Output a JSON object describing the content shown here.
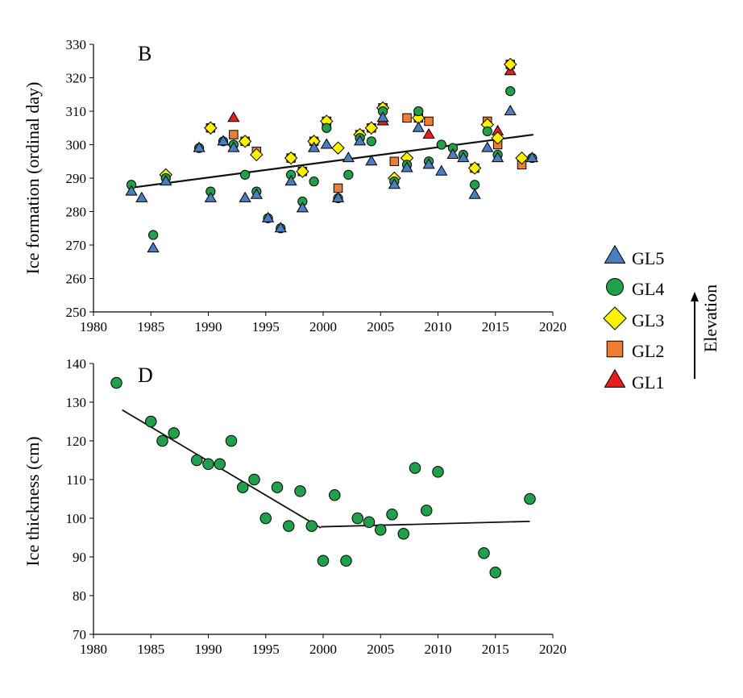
{
  "colors": {
    "GL5": "#4A7EC1",
    "GL4": "#1FA04A",
    "GL3": "#FFF200",
    "GL2": "#ED7D31",
    "GL1": "#E61E1E"
  },
  "legend": {
    "side_label": "Elevation",
    "items": [
      {
        "name": "GL5",
        "shape": "triangle",
        "color": "#4A7EC1"
      },
      {
        "name": "GL4",
        "shape": "circle",
        "color": "#1FA04A"
      },
      {
        "name": "GL3",
        "shape": "diamond",
        "color": "#FFF200"
      },
      {
        "name": "GL2",
        "shape": "square",
        "color": "#ED7D31"
      },
      {
        "name": "GL1",
        "shape": "triangle",
        "color": "#E61E1E"
      }
    ]
  },
  "chart_data": [
    {
      "type": "scatter",
      "panel_label": "B",
      "xlabel": "",
      "ylabel": "Ice formation (ordinal day)",
      "xlim": [
        1980,
        2020
      ],
      "ylim": [
        250,
        330
      ],
      "xticks": [
        1980,
        1985,
        1990,
        1995,
        2000,
        2005,
        2010,
        2015,
        2020
      ],
      "yticks": [
        250,
        260,
        270,
        280,
        290,
        300,
        310,
        320,
        330
      ],
      "grid": false,
      "legend_position": "right",
      "series": [
        {
          "name": "GL1",
          "shape": "triangle",
          "color": "#E61E1E",
          "points": [
            [
              1992.2,
              308
            ],
            [
              2005.2,
              307
            ],
            [
              2009.2,
              303
            ],
            [
              2015.2,
              304
            ],
            [
              2016.3,
              322
            ]
          ]
        },
        {
          "name": "GL2",
          "shape": "square",
          "color": "#ED7D31",
          "points": [
            [
              1990.2,
              305
            ],
            [
              1992.2,
              303
            ],
            [
              1993.2,
              301
            ],
            [
              1994.2,
              298
            ],
            [
              1997.2,
              296
            ],
            [
              1998.2,
              292
            ],
            [
              1999.2,
              301
            ],
            [
              2000.3,
              307
            ],
            [
              2001.3,
              287
            ],
            [
              2003.2,
              303
            ],
            [
              2004.2,
              305
            ],
            [
              2005.2,
              311
            ],
            [
              2006.2,
              295
            ],
            [
              2007.3,
              308
            ],
            [
              2008.3,
              308
            ],
            [
              2009.2,
              307
            ],
            [
              2013.2,
              293
            ],
            [
              2014.3,
              307
            ],
            [
              2015.2,
              300
            ],
            [
              2016.3,
              324
            ],
            [
              2017.3,
              294
            ]
          ]
        },
        {
          "name": "GL3",
          "shape": "diamond",
          "color": "#FFF200",
          "points": [
            [
              1986.3,
              291
            ],
            [
              1990.2,
              305
            ],
            [
              1993.2,
              301
            ],
            [
              1994.2,
              297
            ],
            [
              1997.2,
              296
            ],
            [
              1998.2,
              292
            ],
            [
              1999.2,
              301
            ],
            [
              2000.3,
              307
            ],
            [
              2001.3,
              299
            ],
            [
              2003.2,
              303
            ],
            [
              2004.2,
              305
            ],
            [
              2005.2,
              311
            ],
            [
              2006.2,
              290
            ],
            [
              2007.3,
              296
            ],
            [
              2008.3,
              308
            ],
            [
              2013.2,
              293
            ],
            [
              2014.3,
              306
            ],
            [
              2015.2,
              302
            ],
            [
              2016.3,
              324
            ],
            [
              2017.3,
              296
            ]
          ]
        },
        {
          "name": "GL4",
          "shape": "circle",
          "color": "#1FA04A",
          "points": [
            [
              1983.3,
              288
            ],
            [
              1985.2,
              273
            ],
            [
              1986.3,
              290
            ],
            [
              1989.2,
              299
            ],
            [
              1990.2,
              286
            ],
            [
              1991.3,
              301
            ],
            [
              1992.2,
              300
            ],
            [
              1993.2,
              291
            ],
            [
              1994.2,
              286
            ],
            [
              1995.2,
              278
            ],
            [
              1996.3,
              275
            ],
            [
              1997.2,
              291
            ],
            [
              1998.2,
              283
            ],
            [
              1999.2,
              289
            ],
            [
              2000.3,
              305
            ],
            [
              2001.3,
              284
            ],
            [
              2002.2,
              291
            ],
            [
              2003.2,
              302
            ],
            [
              2004.2,
              301
            ],
            [
              2005.2,
              310
            ],
            [
              2006.2,
              289
            ],
            [
              2007.3,
              294
            ],
            [
              2008.3,
              310
            ],
            [
              2009.2,
              295
            ],
            [
              2010.3,
              300
            ],
            [
              2011.3,
              299
            ],
            [
              2012.2,
              297
            ],
            [
              2013.2,
              288
            ],
            [
              2014.3,
              304
            ],
            [
              2015.2,
              297
            ],
            [
              2016.3,
              316
            ],
            [
              2018.2,
              296
            ]
          ]
        },
        {
          "name": "GL5",
          "shape": "triangle",
          "color": "#4A7EC1",
          "points": [
            [
              1983.3,
              286
            ],
            [
              1984.2,
              284
            ],
            [
              1985.2,
              269
            ],
            [
              1986.3,
              289
            ],
            [
              1989.2,
              299
            ],
            [
              1990.2,
              284
            ],
            [
              1991.3,
              301
            ],
            [
              1992.2,
              299
            ],
            [
              1993.2,
              284
            ],
            [
              1994.2,
              285
            ],
            [
              1995.2,
              278
            ],
            [
              1996.3,
              275
            ],
            [
              1997.2,
              289
            ],
            [
              1998.2,
              281
            ],
            [
              1999.2,
              299
            ],
            [
              2000.3,
              300
            ],
            [
              2001.3,
              284
            ],
            [
              2002.2,
              296
            ],
            [
              2003.2,
              301
            ],
            [
              2004.2,
              295
            ],
            [
              2005.2,
              308
            ],
            [
              2006.2,
              288
            ],
            [
              2007.3,
              293
            ],
            [
              2008.3,
              305
            ],
            [
              2009.2,
              294
            ],
            [
              2010.3,
              292
            ],
            [
              2011.3,
              297
            ],
            [
              2012.2,
              296
            ],
            [
              2013.2,
              285
            ],
            [
              2014.3,
              299
            ],
            [
              2015.2,
              296
            ],
            [
              2016.3,
              310
            ],
            [
              2018.2,
              296
            ]
          ]
        }
      ],
      "trendlines": [
        {
          "x": [
            1983,
            2018.3
          ],
          "y": [
            287,
            303
          ]
        }
      ]
    },
    {
      "type": "scatter",
      "panel_label": "D",
      "xlabel": "",
      "ylabel": "Ice thickness (cm)",
      "xlim": [
        1980,
        2020
      ],
      "ylim": [
        70,
        140
      ],
      "xticks": [
        1980,
        1985,
        1990,
        1995,
        2000,
        2005,
        2010,
        2015,
        2020
      ],
      "yticks": [
        70,
        80,
        90,
        100,
        110,
        120,
        130,
        140
      ],
      "grid": false,
      "series": [
        {
          "name": "GL4",
          "shape": "circle",
          "color": "#1FA04A",
          "points": [
            [
              1982,
              135
            ],
            [
              1985,
              125
            ],
            [
              1986,
              120
            ],
            [
              1987,
              122
            ],
            [
              1989,
              115
            ],
            [
              1990,
              114
            ],
            [
              1991,
              114
            ],
            [
              1992,
              120
            ],
            [
              1993,
              108
            ],
            [
              1994,
              110
            ],
            [
              1995,
              100
            ],
            [
              1996,
              108
            ],
            [
              1997,
              98
            ],
            [
              1998,
              107
            ],
            [
              1999,
              98
            ],
            [
              2000,
              89
            ],
            [
              2001,
              106
            ],
            [
              2002,
              89
            ],
            [
              2003,
              100
            ],
            [
              2004,
              99
            ],
            [
              2005,
              97
            ],
            [
              2006,
              101
            ],
            [
              2007,
              96
            ],
            [
              2008,
              113
            ],
            [
              2009,
              102
            ],
            [
              2010,
              112
            ],
            [
              2014,
              91
            ],
            [
              2015,
              86
            ],
            [
              2018,
              105
            ]
          ]
        }
      ],
      "trendlines": [
        {
          "x": [
            1982.5,
            1999.8
          ],
          "y": [
            128,
            97.5
          ]
        },
        {
          "x": [
            1999.8,
            2018
          ],
          "y": [
            97.8,
            99.2
          ]
        }
      ]
    }
  ]
}
